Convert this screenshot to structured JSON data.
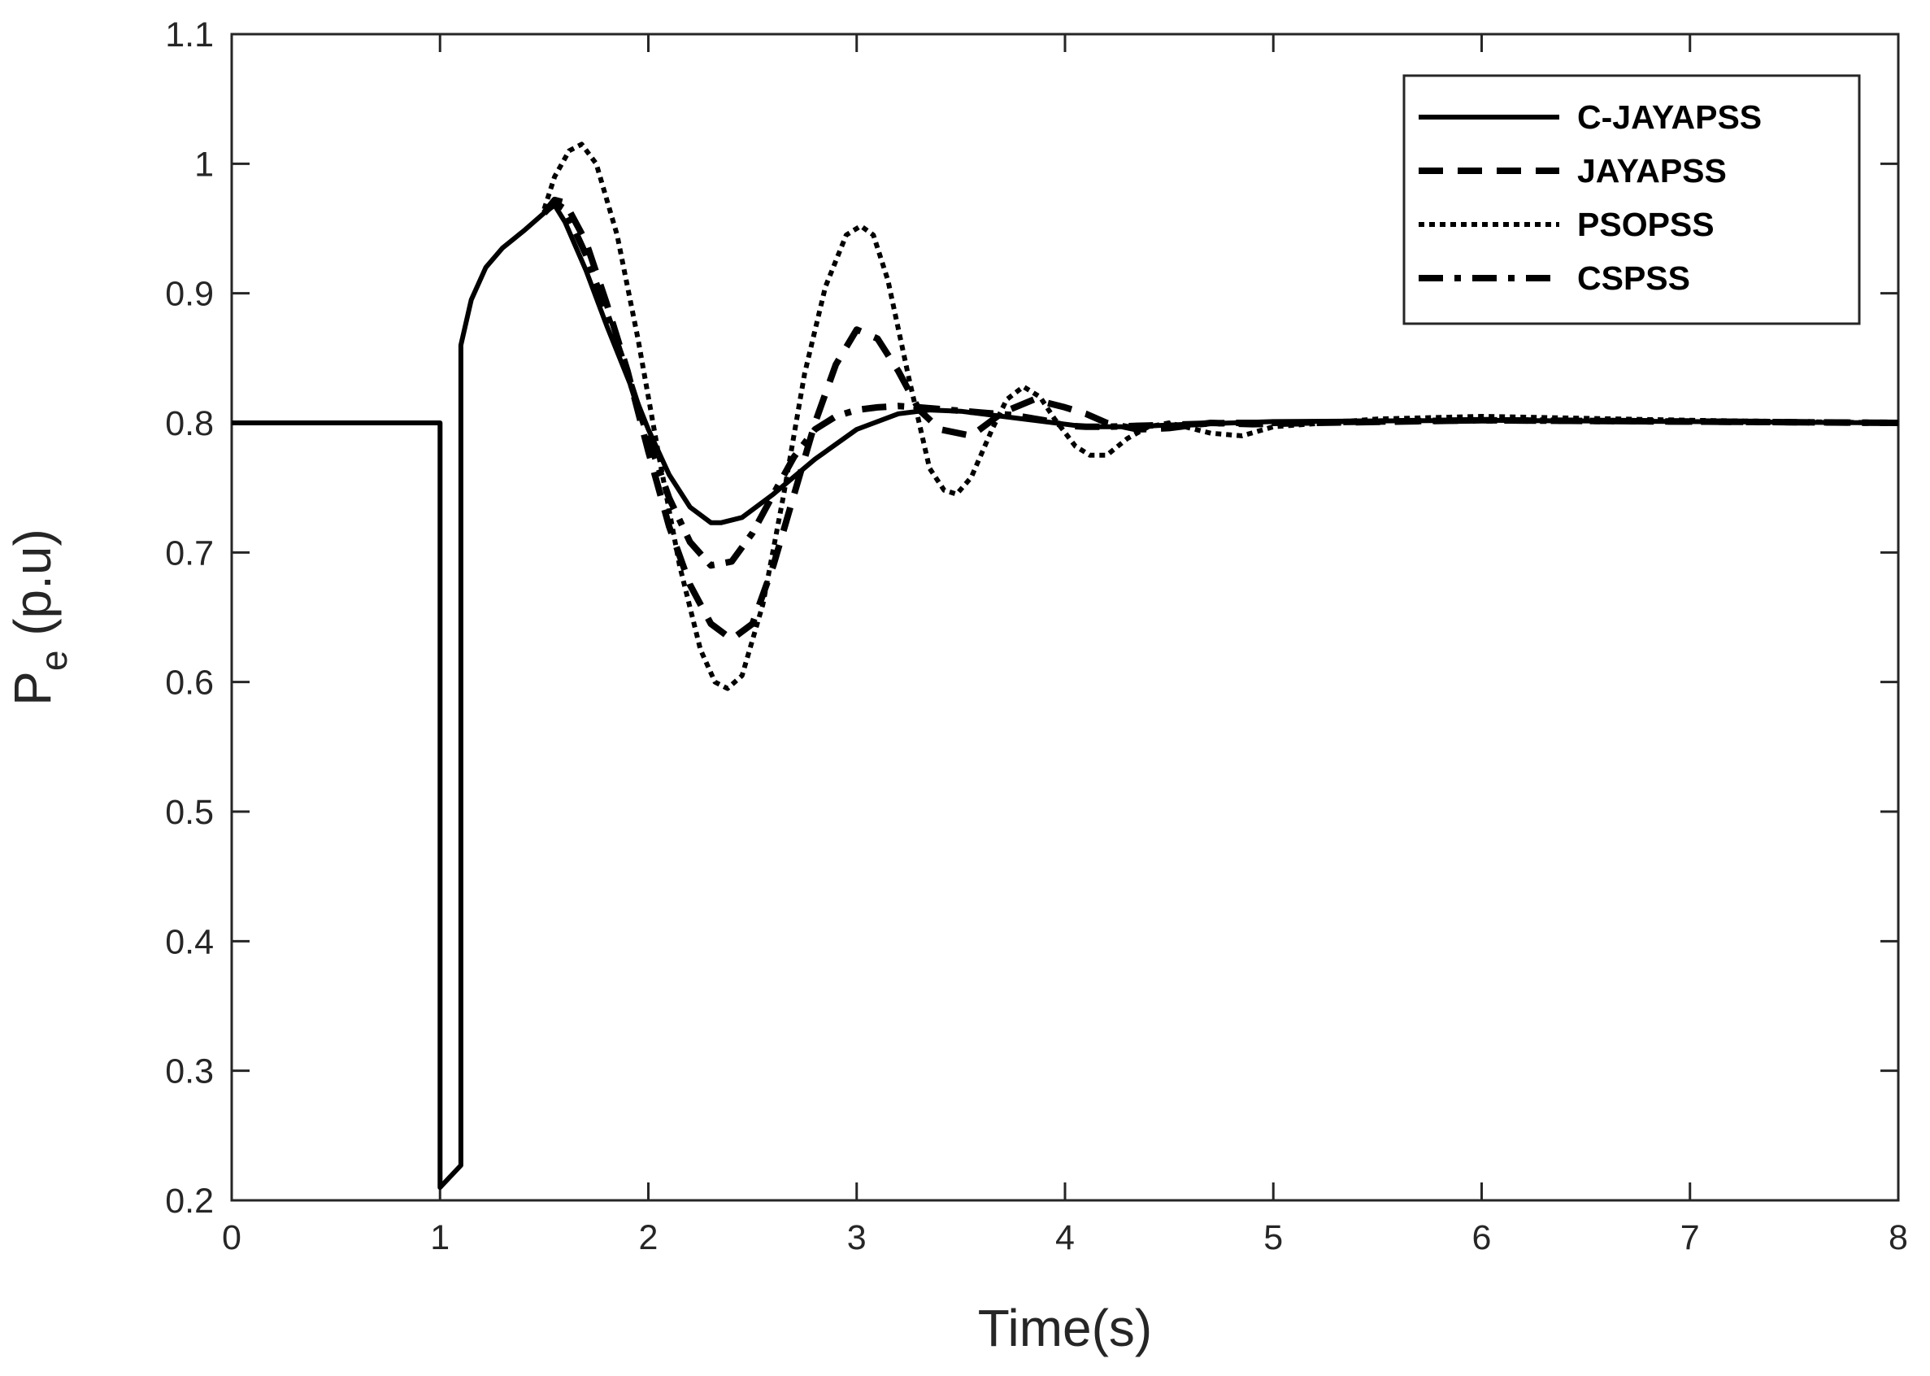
{
  "chart_data": {
    "type": "line",
    "title": "",
    "xlabel": "Time(s)",
    "ylabel_main": "P",
    "ylabel_sub": "e",
    "ylabel_tail": " (p.u)",
    "xlim": [
      0,
      8
    ],
    "ylim": [
      0.2,
      1.1
    ],
    "xticks": [
      0,
      1,
      2,
      3,
      4,
      5,
      6,
      7,
      8
    ],
    "yticks": [
      0.2,
      0.3,
      0.4,
      0.5,
      0.6,
      0.7,
      0.8,
      0.9,
      1,
      1.1
    ],
    "xtick_labels": [
      "0",
      "1",
      "2",
      "3",
      "4",
      "5",
      "6",
      "7",
      "8"
    ],
    "ytick_labels": [
      "0.2",
      "0.3",
      "0.4",
      "0.5",
      "0.6",
      "0.7",
      "0.8",
      "0.9",
      "1",
      "1.1"
    ],
    "grid": false,
    "legend_position": "top-right",
    "series": [
      {
        "name": "C-JAYAPSS",
        "style": "solid",
        "x": [
          0,
          1.0,
          1.0,
          1.1,
          1.1,
          1.15,
          1.22,
          1.3,
          1.4,
          1.5,
          1.55,
          1.6,
          1.7,
          1.8,
          1.9,
          2.0,
          2.1,
          2.2,
          2.3,
          2.35,
          2.45,
          2.6,
          2.8,
          3.0,
          3.2,
          3.35,
          3.5,
          3.7,
          3.9,
          4.1,
          4.3,
          4.6,
          5.0,
          6.0,
          7.0,
          8.0
        ],
        "y": [
          0.8,
          0.8,
          0.21,
          0.227,
          0.86,
          0.895,
          0.92,
          0.935,
          0.948,
          0.962,
          0.968,
          0.955,
          0.918,
          0.875,
          0.835,
          0.795,
          0.76,
          0.735,
          0.723,
          0.723,
          0.727,
          0.745,
          0.772,
          0.795,
          0.807,
          0.81,
          0.809,
          0.805,
          0.801,
          0.797,
          0.797,
          0.799,
          0.801,
          0.802,
          0.801,
          0.8
        ]
      },
      {
        "name": "JAYAPSS",
        "style": "dashed",
        "x": [
          1.5,
          1.55,
          1.6,
          1.7,
          1.8,
          1.9,
          2.0,
          2.1,
          2.2,
          2.3,
          2.4,
          2.5,
          2.6,
          2.7,
          2.8,
          2.9,
          3.0,
          3.1,
          3.2,
          3.3,
          3.4,
          3.55,
          3.7,
          3.85,
          4.0,
          4.1,
          4.2,
          4.35,
          4.5,
          4.7,
          4.9,
          5.2,
          6.0,
          7.0,
          8.0
        ],
        "y": [
          0.962,
          0.972,
          0.97,
          0.94,
          0.892,
          0.84,
          0.778,
          0.72,
          0.675,
          0.645,
          0.633,
          0.645,
          0.69,
          0.745,
          0.8,
          0.845,
          0.872,
          0.865,
          0.84,
          0.81,
          0.795,
          0.79,
          0.808,
          0.818,
          0.812,
          0.807,
          0.8,
          0.795,
          0.796,
          0.8,
          0.799,
          0.8,
          0.802,
          0.801,
          0.8
        ]
      },
      {
        "name": "PSOPSS",
        "style": "dotted",
        "x": [
          1.5,
          1.55,
          1.62,
          1.68,
          1.75,
          1.85,
          1.95,
          2.05,
          2.15,
          2.25,
          2.32,
          2.38,
          2.45,
          2.55,
          2.65,
          2.75,
          2.85,
          2.95,
          3.02,
          3.08,
          3.15,
          3.25,
          3.35,
          3.42,
          3.48,
          3.55,
          3.65,
          3.72,
          3.8,
          3.88,
          3.95,
          4.05,
          4.12,
          4.2,
          4.3,
          4.4,
          4.5,
          4.7,
          4.85,
          5.0,
          5.5,
          6.0,
          7.0,
          8.0
        ],
        "y": [
          0.965,
          0.99,
          1.01,
          1.015,
          1.0,
          0.945,
          0.865,
          0.775,
          0.69,
          0.625,
          0.6,
          0.595,
          0.605,
          0.66,
          0.745,
          0.838,
          0.905,
          0.945,
          0.952,
          0.945,
          0.91,
          0.835,
          0.765,
          0.748,
          0.745,
          0.758,
          0.795,
          0.818,
          0.828,
          0.82,
          0.803,
          0.782,
          0.775,
          0.775,
          0.788,
          0.797,
          0.8,
          0.792,
          0.79,
          0.797,
          0.803,
          0.805,
          0.802,
          0.8
        ]
      },
      {
        "name": "CSPSS",
        "style": "dashdot",
        "x": [
          1.5,
          1.55,
          1.6,
          1.7,
          1.8,
          1.9,
          2.0,
          2.1,
          2.2,
          2.3,
          2.4,
          2.5,
          2.6,
          2.7,
          2.8,
          2.9,
          3.0,
          3.1,
          3.2,
          3.3,
          3.45,
          3.6,
          3.75,
          3.9,
          4.0,
          4.1,
          4.2,
          4.4,
          4.6,
          4.8,
          5.0,
          5.5,
          6.0,
          7.0,
          8.0
        ],
        "y": [
          0.962,
          0.97,
          0.965,
          0.93,
          0.885,
          0.838,
          0.788,
          0.742,
          0.708,
          0.69,
          0.693,
          0.715,
          0.745,
          0.774,
          0.795,
          0.805,
          0.81,
          0.812,
          0.813,
          0.812,
          0.81,
          0.808,
          0.806,
          0.802,
          0.798,
          0.797,
          0.797,
          0.798,
          0.799,
          0.8,
          0.8,
          0.801,
          0.802,
          0.801,
          0.8
        ]
      }
    ]
  }
}
